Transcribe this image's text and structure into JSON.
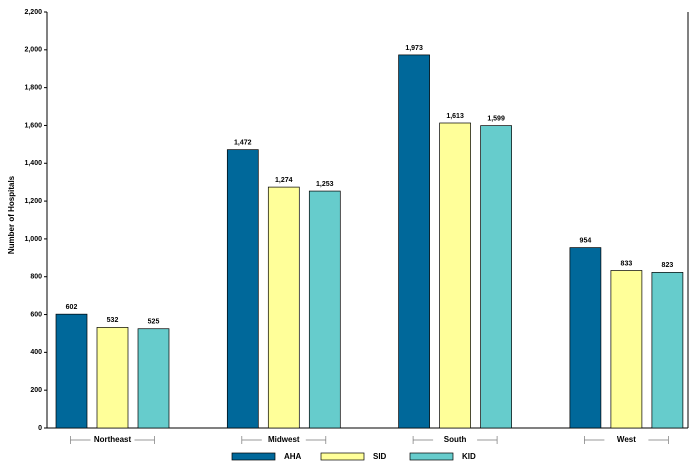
{
  "chart_data": {
    "type": "bar",
    "y_label": "Number of Hospitals",
    "categories": [
      "Northeast",
      "Midwest",
      "South",
      "West"
    ],
    "series": [
      {
        "name": "AHA",
        "color": "#00689a",
        "values": [
          602,
          1472,
          1973,
          954
        ],
        "value_labels": [
          "602",
          "1,472",
          "1,973",
          "954"
        ]
      },
      {
        "name": "SID",
        "color": "#ffff99",
        "values": [
          532,
          1274,
          1613,
          833
        ],
        "value_labels": [
          "532",
          "1,274",
          "1,613",
          "833"
        ]
      },
      {
        "name": "KID",
        "color": "#66cccc",
        "values": [
          525,
          1253,
          1599,
          823
        ],
        "value_labels": [
          "525",
          "1,253",
          "1,599",
          "823"
        ]
      }
    ],
    "ylim": [
      0,
      2200
    ],
    "yticks": [
      0,
      200,
      400,
      600,
      800,
      {
        "value": 1000,
        "label": "1,000"
      },
      {
        "value": 1200,
        "label": "1,200"
      },
      {
        "value": 1400,
        "label": "1,400"
      },
      {
        "value": 1600,
        "label": "1,600"
      },
      {
        "value": 1800,
        "label": "1,800"
      },
      {
        "value": 2000,
        "label": "2,000"
      },
      {
        "value": 2200,
        "label": "2,200"
      }
    ],
    "grid": false
  }
}
